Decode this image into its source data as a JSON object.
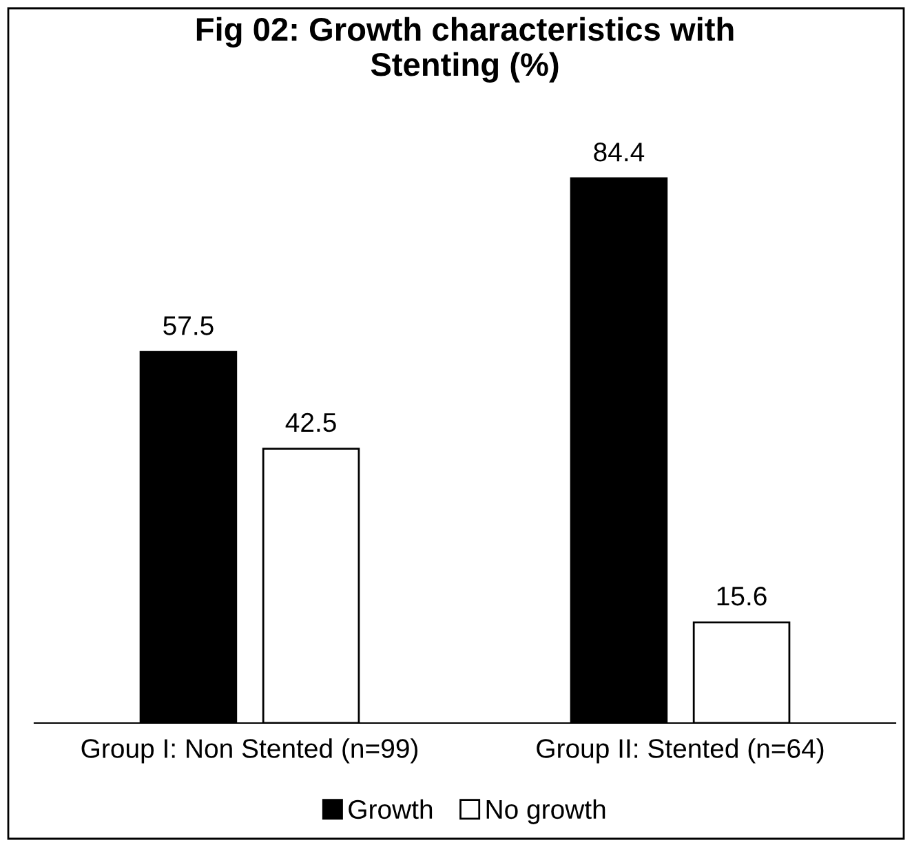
{
  "chart_data": {
    "type": "bar",
    "title": "Fig 02: Growth characteristics with\nStenting (%)",
    "categories": [
      "Group I: Non Stented (n=99)",
      "Group II: Stented (n=64)"
    ],
    "series": [
      {
        "name": "Growth",
        "color": "#000000",
        "values": [
          57.5,
          84.4
        ]
      },
      {
        "name": "No growth",
        "color": "#ffffff",
        "values": [
          42.5,
          15.6
        ]
      }
    ],
    "data_labels": true,
    "legend": "bottom",
    "grid": false
  }
}
